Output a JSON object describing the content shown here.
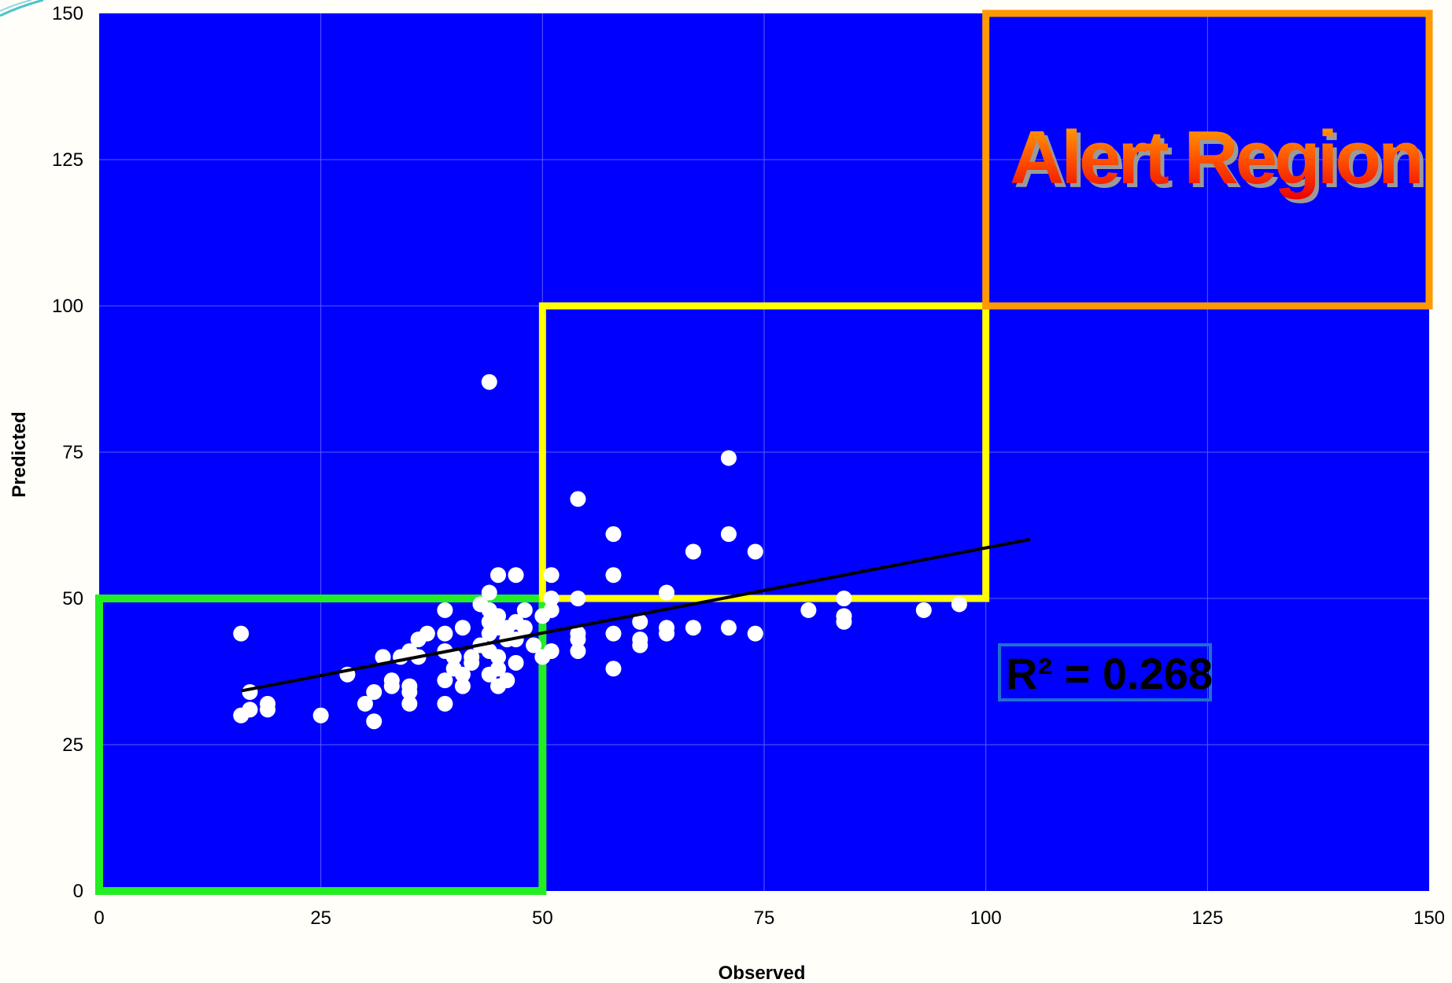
{
  "chart_data": {
    "type": "scatter",
    "xlabel": "Observed",
    "ylabel": "Predicted",
    "xlim": [
      0,
      150
    ],
    "ylim": [
      0,
      150
    ],
    "xticks": [
      0,
      25,
      50,
      75,
      100,
      125,
      150
    ],
    "yticks": [
      0,
      25,
      50,
      75,
      100,
      125,
      150
    ],
    "grid": true,
    "colors": {
      "plot_background": "#0000ff",
      "points": "#ffffff",
      "trendline": "#000000",
      "box_low": "#22ee22",
      "box_mid": "#ffff00",
      "box_alert": "#ff9900",
      "r2_border": "#1f6fd0"
    },
    "points": [
      [
        16,
        44
      ],
      [
        16,
        30
      ],
      [
        17,
        31
      ],
      [
        17,
        34
      ],
      [
        19,
        31
      ],
      [
        19,
        32
      ],
      [
        25,
        30
      ],
      [
        28,
        37
      ],
      [
        30,
        32
      ],
      [
        31,
        29
      ],
      [
        31,
        34
      ],
      [
        32,
        40
      ],
      [
        33,
        35
      ],
      [
        33,
        36
      ],
      [
        34,
        40
      ],
      [
        35,
        32
      ],
      [
        35,
        34
      ],
      [
        35,
        35
      ],
      [
        35,
        41
      ],
      [
        36,
        40
      ],
      [
        36,
        43
      ],
      [
        37,
        44
      ],
      [
        39,
        48
      ],
      [
        39,
        44
      ],
      [
        39,
        41
      ],
      [
        39,
        36
      ],
      [
        39,
        32
      ],
      [
        40,
        40
      ],
      [
        40,
        38
      ],
      [
        41,
        37
      ],
      [
        41,
        45
      ],
      [
        41,
        35
      ],
      [
        42,
        39
      ],
      [
        42,
        40
      ],
      [
        43,
        42
      ],
      [
        43,
        49
      ],
      [
        44,
        51
      ],
      [
        44,
        87
      ],
      [
        44,
        46
      ],
      [
        44,
        48
      ],
      [
        44,
        44
      ],
      [
        44,
        41
      ],
      [
        44,
        37
      ],
      [
        45,
        54
      ],
      [
        45,
        47
      ],
      [
        45,
        45
      ],
      [
        45,
        40
      ],
      [
        45,
        38
      ],
      [
        45,
        35
      ],
      [
        46,
        43
      ],
      [
        46,
        45
      ],
      [
        46,
        36
      ],
      [
        47,
        54
      ],
      [
        47,
        46
      ],
      [
        47,
        43
      ],
      [
        47,
        39
      ],
      [
        48,
        48
      ],
      [
        48,
        45
      ],
      [
        49,
        42
      ],
      [
        50,
        47
      ],
      [
        50,
        40
      ],
      [
        51,
        54
      ],
      [
        51,
        50
      ],
      [
        51,
        48
      ],
      [
        51,
        41
      ],
      [
        54,
        67
      ],
      [
        54,
        50
      ],
      [
        54,
        44
      ],
      [
        54,
        43
      ],
      [
        54,
        41
      ],
      [
        58,
        61
      ],
      [
        58,
        54
      ],
      [
        58,
        44
      ],
      [
        58,
        38
      ],
      [
        61,
        46
      ],
      [
        61,
        43
      ],
      [
        61,
        42
      ],
      [
        64,
        51
      ],
      [
        64,
        45
      ],
      [
        64,
        44
      ],
      [
        67,
        58
      ],
      [
        67,
        45
      ],
      [
        71,
        74
      ],
      [
        71,
        61
      ],
      [
        71,
        45
      ],
      [
        74,
        58
      ],
      [
        74,
        44
      ],
      [
        80,
        48
      ],
      [
        84,
        50
      ],
      [
        84,
        47
      ],
      [
        84,
        46
      ],
      [
        93,
        48
      ],
      [
        97,
        49
      ]
    ],
    "trendline": {
      "x": [
        16,
        105
      ],
      "y": [
        34.2,
        60.1
      ]
    },
    "regions": [
      {
        "name": "low",
        "x": [
          0,
          50
        ],
        "y": [
          0,
          50
        ]
      },
      {
        "name": "mid",
        "x": [
          50,
          100
        ],
        "y": [
          50,
          100
        ]
      },
      {
        "name": "alert",
        "x": [
          100,
          150
        ],
        "y": [
          100,
          150
        ],
        "label": "Alert Region"
      }
    ],
    "annotation": "R² = 0.268"
  }
}
